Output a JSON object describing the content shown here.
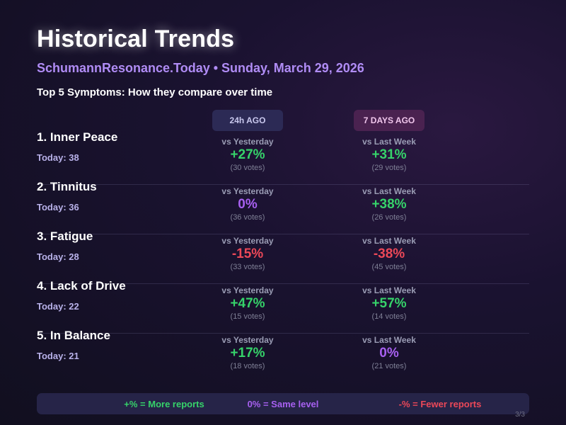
{
  "header": {
    "title": "Historical Trends",
    "subtitle": "SchumannResonance.Today • Sunday, March 29, 2026",
    "section": "Top 5 Symptoms: How they compare over time"
  },
  "columns": {
    "h24": "24h AGO",
    "h7": "7 DAYS AGO"
  },
  "labels": {
    "yesterday": "vs Yesterday",
    "last_week": "vs Last Week"
  },
  "rows": [
    {
      "name": "1. Inner Peace",
      "today": "Today: 38",
      "y": {
        "pct": "+27%",
        "trend": "up",
        "votes": "(30 votes)"
      },
      "w": {
        "pct": "+31%",
        "trend": "up",
        "votes": "(29 votes)"
      }
    },
    {
      "name": "2. Tinnitus",
      "today": "Today: 36",
      "y": {
        "pct": "0%",
        "trend": "same",
        "votes": "(36 votes)"
      },
      "w": {
        "pct": "+38%",
        "trend": "up",
        "votes": "(26 votes)"
      }
    },
    {
      "name": "3. Fatigue",
      "today": "Today: 28",
      "y": {
        "pct": "-15%",
        "trend": "down",
        "votes": "(33 votes)"
      },
      "w": {
        "pct": "-38%",
        "trend": "down",
        "votes": "(45 votes)"
      }
    },
    {
      "name": "4. Lack of Drive",
      "today": "Today: 22",
      "y": {
        "pct": "+47%",
        "trend": "up",
        "votes": "(15 votes)"
      },
      "w": {
        "pct": "+57%",
        "trend": "up",
        "votes": "(14 votes)"
      }
    },
    {
      "name": "5. In Balance",
      "today": "Today: 21",
      "y": {
        "pct": "+17%",
        "trend": "up",
        "votes": "(18 votes)"
      },
      "w": {
        "pct": "0%",
        "trend": "same",
        "votes": "(21 votes)"
      }
    }
  ],
  "legend": {
    "more": "+% = More reports",
    "same": "0% = Same level",
    "fewer": "-% = Fewer reports"
  },
  "page_indicator": "3/3",
  "colors": {
    "up": "#36d36a",
    "same": "#a760f0",
    "down": "#ec4858",
    "accent": "#b08cf5"
  }
}
